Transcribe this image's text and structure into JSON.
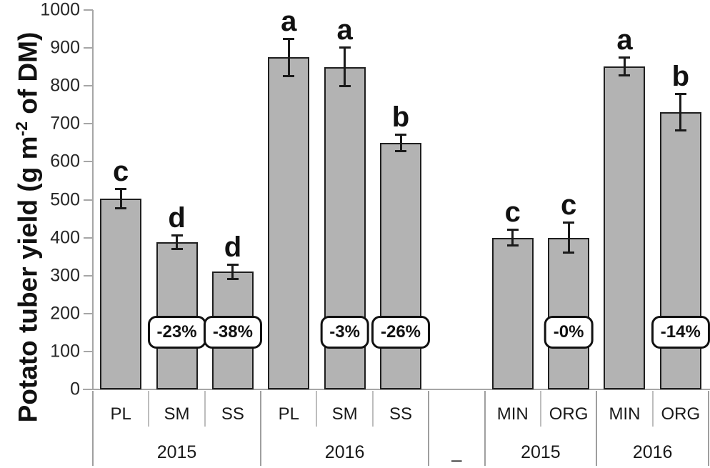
{
  "chart_data": {
    "type": "bar",
    "title": "",
    "ylabel": {
      "pre": "Potato tuber yield (g m",
      "sup": "-2",
      "post": " of DM)"
    },
    "ylim": [
      0,
      1000
    ],
    "yticks": [
      0,
      100,
      200,
      300,
      400,
      500,
      600,
      700,
      800,
      900,
      1000
    ],
    "grid": false,
    "legend": null,
    "bar_color": "#b3b3b3",
    "bar_border_color": "#1f1f1f",
    "axis_color": "#a6a6a6",
    "text_color": "#1a1a1a",
    "badge_center_value": 150,
    "slots": [
      {
        "label": "PL",
        "year": "2015",
        "value": 503,
        "err": 26,
        "letter": "c",
        "badge": null
      },
      {
        "label": "SM",
        "year": "2015",
        "value": 388,
        "err": 18,
        "letter": "d",
        "badge": "-23%"
      },
      {
        "label": "SS",
        "year": "2015",
        "value": 310,
        "err": 20,
        "letter": "d",
        "badge": "-38%"
      },
      {
        "label": "PL",
        "year": "2016",
        "value": 875,
        "err": 50,
        "letter": "a",
        "badge": null
      },
      {
        "label": "SM",
        "year": "2016",
        "value": 850,
        "err": 52,
        "letter": "a",
        "badge": "-3%"
      },
      {
        "label": "SS",
        "year": "2016",
        "value": 650,
        "err": 22,
        "letter": "b",
        "badge": "-26%"
      },
      {
        "label": "",
        "year": "",
        "value": null,
        "err": null,
        "letter": null,
        "badge": null
      },
      {
        "label": "MIN",
        "year": "2015",
        "value": 400,
        "err": 22,
        "letter": "c",
        "badge": null
      },
      {
        "label": "ORG",
        "year": "2015",
        "value": 400,
        "err": 40,
        "letter": "c",
        "badge": "-0%"
      },
      {
        "label": "MIN",
        "year": "2016",
        "value": 851,
        "err": 25,
        "letter": "a",
        "badge": null
      },
      {
        "label": "ORG",
        "year": "2016",
        "value": 731,
        "err": 49,
        "letter": "b",
        "badge": "-14%"
      }
    ],
    "years": [
      {
        "label": "2015",
        "from": 0,
        "to": 2
      },
      {
        "label": "2016",
        "from": 3,
        "to": 5
      },
      {
        "label": "_",
        "from": 6,
        "to": 6
      },
      {
        "label": "2015",
        "from": 7,
        "to": 8
      },
      {
        "label": "2016",
        "from": 9,
        "to": 10
      }
    ]
  }
}
